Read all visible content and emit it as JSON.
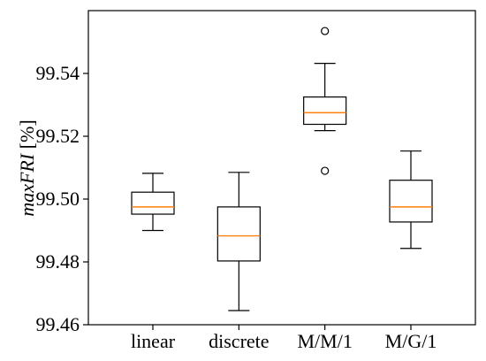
{
  "chart_data": {
    "type": "box",
    "title": "",
    "xlabel": "",
    "ylabel": "maxFRI [%]",
    "ylabel_italic_part": "maxFRI",
    "ylabel_unit_part": "[%]",
    "ylim": [
      99.46,
      99.56
    ],
    "yticks": [
      99.46,
      99.48,
      99.5,
      99.52,
      99.54
    ],
    "ytick_labels": [
      "99.46",
      "99.48",
      "99.50",
      "99.52",
      "99.54"
    ],
    "categories": [
      "linear",
      "discrete",
      "M/M/1",
      "M/G/1"
    ],
    "boxes": [
      {
        "name": "linear",
        "whisker_low": 99.49,
        "q1": 99.4952,
        "median": 99.4975,
        "q3": 99.5022,
        "whisker_high": 99.5082,
        "outliers": []
      },
      {
        "name": "discrete",
        "whisker_low": 99.4645,
        "q1": 99.4803,
        "median": 99.4883,
        "q3": 99.4975,
        "whisker_high": 99.5085,
        "outliers": []
      },
      {
        "name": "M/M/1",
        "whisker_low": 99.5218,
        "q1": 99.5238,
        "median": 99.5275,
        "q3": 99.5325,
        "whisker_high": 99.5432,
        "outliers": [
          99.509,
          99.5535
        ]
      },
      {
        "name": "M/G/1",
        "whisker_low": 99.4843,
        "q1": 99.4927,
        "median": 99.4975,
        "q3": 99.506,
        "whisker_high": 99.5153,
        "outliers": []
      }
    ],
    "grid": false,
    "legend": "none",
    "colors": {
      "box": "#000000",
      "median": "#ff7f0e",
      "outlier": "#000000"
    }
  }
}
